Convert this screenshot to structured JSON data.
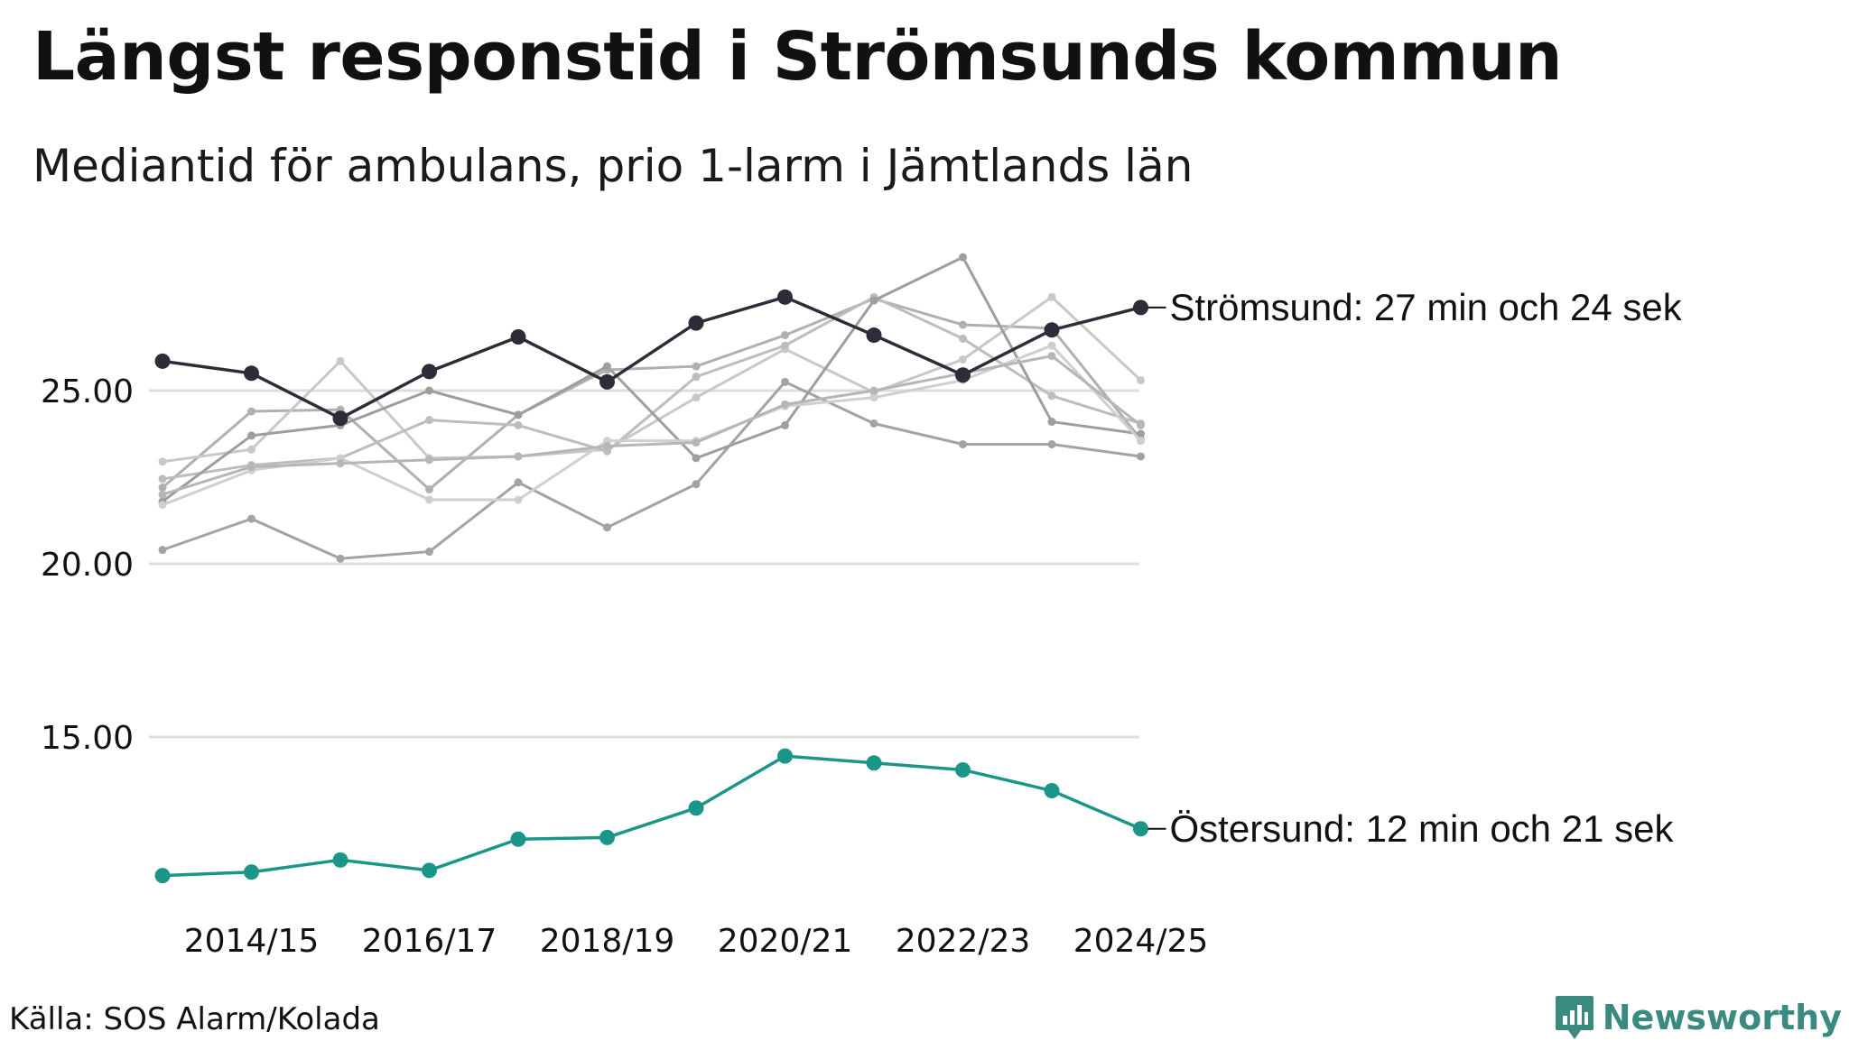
{
  "title": "Längst responstid i Strömsunds kommun",
  "subtitle": "Mediantid för ambulans, prio 1-larm i Jämtlands län",
  "source": "Källa: SOS Alarm/Kolada",
  "brand": "Newsworthy",
  "colors": {
    "highlight": "#2d2d3a",
    "teal": "#1a9688",
    "grid": "#dcdcdc",
    "greys": [
      "#b0b0b0",
      "#a3a3a3",
      "#c8c8c8",
      "#bdbdbd",
      "#9e9e9e",
      "#cfcfcf",
      "#b6b6b6"
    ]
  },
  "chart_data": {
    "type": "line",
    "x": [
      "2013/14",
      "2014/15",
      "2015/16",
      "2016/17",
      "2017/18",
      "2018/19",
      "2019/20",
      "2020/21",
      "2021/22",
      "2022/23",
      "2023/24",
      "2024/25"
    ],
    "x_tick_labels": [
      "2014/15",
      "2016/17",
      "2018/19",
      "2020/21",
      "2022/23",
      "2024/25"
    ],
    "y_ticks": [
      15,
      20,
      25
    ],
    "y_tick_labels": [
      "15.00",
      "20.00",
      "25.00"
    ],
    "ylim": [
      10.5,
      29.5
    ],
    "series": [
      {
        "name": "grey-1",
        "role": "other",
        "values": [
          22.2,
          24.4,
          24.45,
          22.15,
          24.3,
          25.6,
          25.7,
          26.6,
          27.65,
          26.9,
          26.8,
          23.6
        ]
      },
      {
        "name": "grey-2",
        "role": "other",
        "values": [
          20.4,
          21.3,
          20.15,
          20.35,
          22.35,
          21.05,
          22.3,
          25.25,
          24.05,
          23.45,
          23.45,
          23.1
        ]
      },
      {
        "name": "grey-3",
        "role": "other",
        "values": [
          22.95,
          23.3,
          25.85,
          23.05,
          23.1,
          23.3,
          24.8,
          26.2,
          24.95,
          25.9,
          27.7,
          25.3
        ]
      },
      {
        "name": "grey-4",
        "role": "other",
        "values": [
          22.45,
          22.85,
          23.05,
          24.15,
          24.0,
          23.25,
          25.4,
          26.3,
          27.7,
          26.5,
          24.85,
          24.05
        ]
      },
      {
        "name": "grey-5",
        "role": "other",
        "values": [
          21.8,
          23.7,
          24.0,
          25.0,
          24.3,
          25.7,
          23.05,
          24.0,
          27.6,
          28.85,
          24.1,
          23.75
        ]
      },
      {
        "name": "grey-6",
        "role": "other",
        "values": [
          21.7,
          22.7,
          23.05,
          21.85,
          21.85,
          23.55,
          23.55,
          24.55,
          24.8,
          25.3,
          26.3,
          23.55
        ]
      },
      {
        "name": "grey-7",
        "role": "other",
        "values": [
          22.0,
          22.8,
          22.9,
          23.0,
          23.1,
          23.4,
          23.5,
          24.6,
          25.0,
          25.5,
          26.0,
          24.0
        ]
      },
      {
        "name": "Strömsund",
        "role": "highlight",
        "label": "Strömsund: 27 min och 24 sek",
        "values": [
          25.85,
          25.5,
          24.2,
          25.55,
          26.55,
          25.25,
          26.95,
          27.7,
          26.6,
          25.45,
          26.75,
          27.4
        ]
      },
      {
        "name": "Östersund",
        "role": "teal",
        "label": "Östersund: 12 min och 21 sek",
        "values": [
          11.0,
          11.1,
          11.45,
          11.15,
          12.05,
          12.1,
          12.95,
          14.45,
          14.25,
          14.05,
          13.45,
          12.35
        ]
      }
    ]
  }
}
